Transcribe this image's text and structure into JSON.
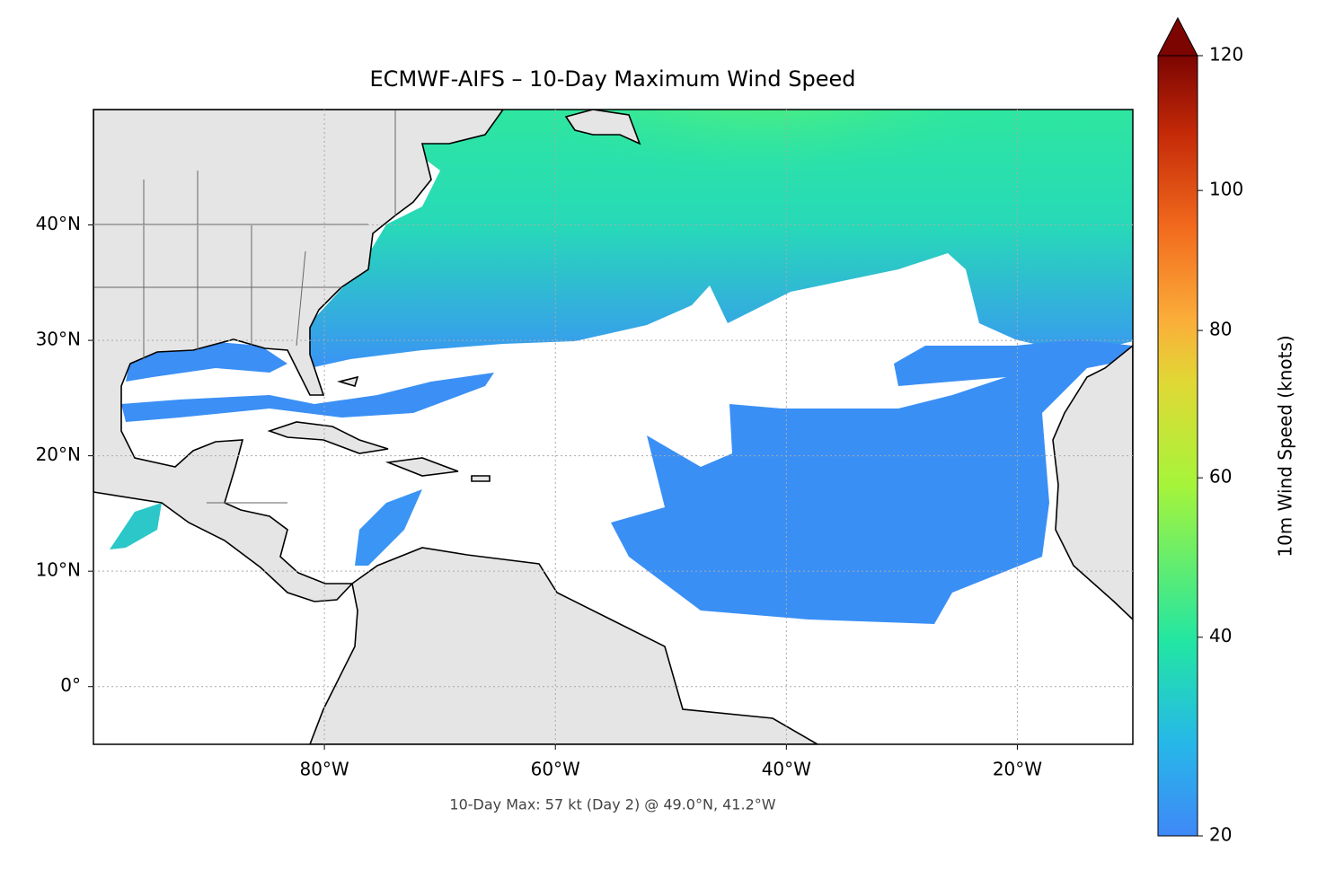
{
  "chart_data": {
    "type": "map",
    "title": "ECMWF-AIFS – 10-Day Maximum Wind Speed",
    "annotation": "10-Day Max: 57 kt (Day 2) @ 49.0°N, 41.2°W",
    "xlim": [
      -100,
      -10
    ],
    "ylim": [
      -5,
      50
    ],
    "xticks": [
      {
        "value": -80,
        "label": "80°W"
      },
      {
        "value": -60,
        "label": "60°W"
      },
      {
        "value": -40,
        "label": "40°W"
      },
      {
        "value": -20,
        "label": "20°W"
      }
    ],
    "yticks": [
      {
        "value": 0,
        "label": "0°"
      },
      {
        "value": 10,
        "label": "10°N"
      },
      {
        "value": 20,
        "label": "20°N"
      },
      {
        "value": 30,
        "label": "30°N"
      },
      {
        "value": 40,
        "label": "40°N"
      }
    ],
    "grid": true,
    "colorbar": {
      "label": "10m Wind Speed (knots)",
      "lim": [
        20,
        120
      ],
      "ticks": [
        20,
        40,
        60,
        80,
        100,
        120
      ]
    }
  }
}
